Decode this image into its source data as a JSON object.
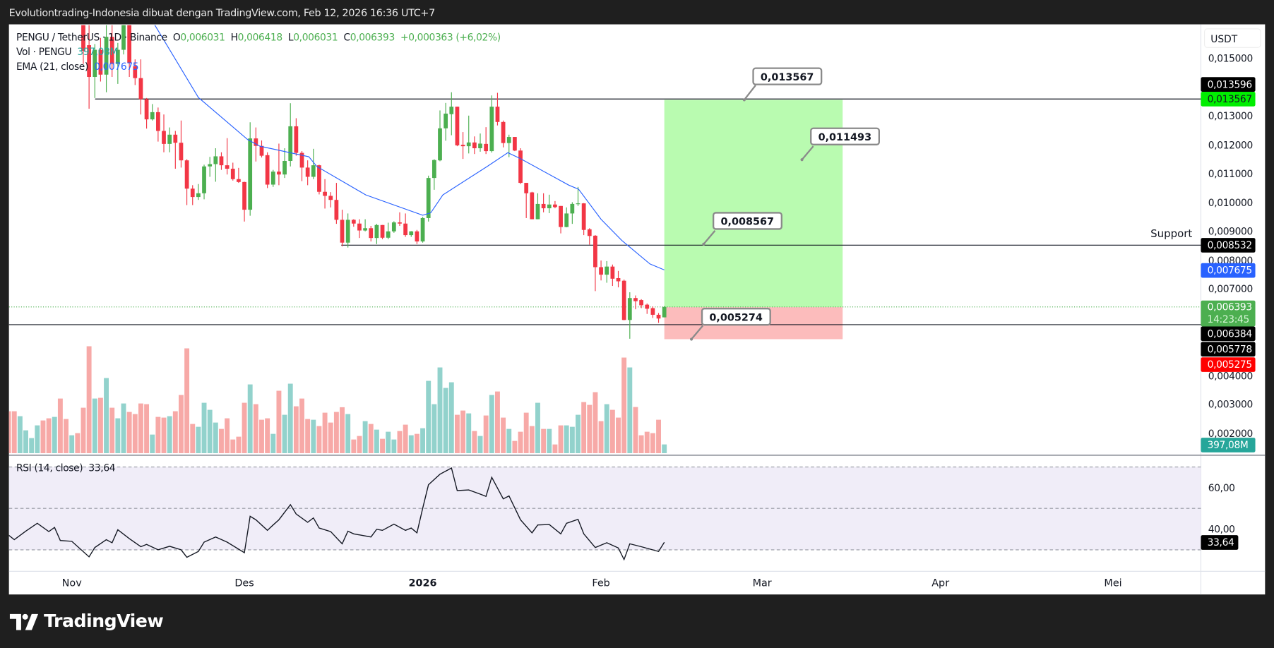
{
  "header": {
    "title": "Evolutiontrading-Indonesia dibuat dengan TradingView.com, Feb 12, 2026 16:36 UTC+7"
  },
  "legend": {
    "symbol": "PENGU / TetherUS · 1D · Binance",
    "o_label": "O",
    "o": "0,006031",
    "h_label": "H",
    "h": "0,006418",
    "l_label": "L",
    "l": "0,006031",
    "c_label": "C",
    "c": "0,006393",
    "change": "+0,000363 (+6,02%)",
    "vol_label": "Vol · PENGU",
    "vol_value": "397,08M",
    "ema_label": "EMA (21, close)",
    "ema_value": "0,007675",
    "rsi_label": "RSI (14, close)",
    "rsi_value": "33,64"
  },
  "price_axis": {
    "currency": "USDT",
    "ticks": [
      {
        "value": 0.015,
        "label": "0,015000"
      },
      {
        "value": 0.013,
        "label": "0,013000"
      },
      {
        "value": 0.012,
        "label": "0,012000"
      },
      {
        "value": 0.011,
        "label": "0,011000"
      },
      {
        "value": 0.01,
        "label": "0,010000"
      },
      {
        "value": 0.009,
        "label": "0,009000"
      },
      {
        "value": 0.008,
        "label": "0,008000"
      },
      {
        "value": 0.007,
        "label": "0,007000"
      },
      {
        "value": 0.004,
        "label": "0,004000"
      },
      {
        "value": 0.003,
        "label": "0,003000"
      },
      {
        "value": 0.002,
        "label": "0,002000"
      }
    ],
    "badges": {
      "resistance": "0,013596",
      "target": "0,013567",
      "support": "0,008532",
      "ema": "0,007675",
      "last_price": "0,006393",
      "countdown": "14:23:45",
      "entry": "0,006384",
      "low_line": "0,005778",
      "stop": "0,005275",
      "volume": "397,08M"
    }
  },
  "rsi_axis": {
    "ticks": [
      {
        "value": 60,
        "label": "60,00"
      },
      {
        "value": 40,
        "label": "40,00"
      }
    ],
    "current": "33,64"
  },
  "time_axis": [
    {
      "bar": 11,
      "label": "Nov"
    },
    {
      "bar": 41,
      "label": "Des"
    },
    {
      "bar": 72,
      "label": "2026",
      "bold": true
    },
    {
      "bar": 103,
      "label": "Feb"
    },
    {
      "bar": 131,
      "label": "Mar"
    },
    {
      "bar": 162,
      "label": "Apr"
    },
    {
      "bar": 192,
      "label": "Mei"
    }
  ],
  "drawings": {
    "support_text": "Support",
    "resistance_price": 0.013596,
    "support_price": 0.008532,
    "low_line_price": 0.005778,
    "last_price": 0.006393,
    "position": {
      "target": 0.013567,
      "entry": 0.006384,
      "stop": 0.005275,
      "start_bar": 114,
      "end_bar": 145
    },
    "callouts": [
      {
        "label": "0,013567",
        "price": 0.013567
      },
      {
        "label": "0,011493",
        "price": 0.011493
      },
      {
        "label": "0,008567",
        "price": 0.008567
      },
      {
        "label": "0,005274",
        "price": 0.005274
      }
    ]
  },
  "colors": {
    "up": "#4caf50",
    "down": "#f23645",
    "vol_up": "#92d2cc",
    "vol_down": "#f7a9a7",
    "ema": "#2962ff",
    "target_zone": "#b9fbb0",
    "stop_zone": "#fcbcbc",
    "rsi_band": "#f0edf8"
  },
  "chart_data": {
    "type": "candlestick",
    "first_candle_bar": 13,
    "candles_ohlc": [
      [
        0.0166,
        0.01701,
        0.01481,
        0.01526
      ],
      [
        0.01546,
        0.01619,
        0.01326,
        0.01436
      ],
      [
        0.01436,
        0.0155,
        0.01363,
        0.0153
      ],
      [
        0.0153,
        0.01571,
        0.0142,
        0.01444
      ],
      [
        0.01444,
        0.01619,
        0.01383,
        0.01575
      ],
      [
        0.01575,
        0.01619,
        0.01436,
        0.01481
      ],
      [
        0.01481,
        0.01554,
        0.01412,
        0.0153
      ],
      [
        0.0153,
        0.0166,
        0.01514,
        0.01619
      ],
      [
        0.01619,
        0.01644,
        0.01436,
        0.01485
      ],
      [
        0.01473,
        0.01497,
        0.01408,
        0.01432
      ],
      [
        0.01432,
        0.01497,
        0.01306,
        0.01359
      ],
      [
        0.01359,
        0.01363,
        0.01257,
        0.01289
      ],
      [
        0.01289,
        0.01342,
        0.01285,
        0.01314
      ],
      [
        0.01314,
        0.0133,
        0.01212,
        0.01249
      ],
      [
        0.01249,
        0.01306,
        0.01175,
        0.01204
      ],
      [
        0.01204,
        0.01261,
        0.01175,
        0.01236
      ],
      [
        0.01236,
        0.01249,
        0.01118,
        0.01208
      ],
      [
        0.01208,
        0.01285,
        0.01122,
        0.01147
      ],
      [
        0.01147,
        0.01151,
        0.00992,
        0.01049
      ],
      [
        0.01049,
        0.01061,
        0.00992,
        0.0102
      ],
      [
        0.0102,
        0.01065,
        0.0101,
        0.01033
      ],
      [
        0.01033,
        0.01132,
        0.01012,
        0.01126
      ],
      [
        0.01126,
        0.01159,
        0.0109,
        0.01134
      ],
      [
        0.01134,
        0.01189,
        0.01073,
        0.01161
      ],
      [
        0.01161,
        0.01175,
        0.01114,
        0.0113
      ],
      [
        0.0113,
        0.01224,
        0.01098,
        0.01118
      ],
      [
        0.01118,
        0.01139,
        0.01077,
        0.01082
      ],
      [
        0.01082,
        0.01121,
        0.01069,
        0.01072
      ],
      [
        0.01072,
        0.01073,
        0.00935,
        0.00976
      ],
      [
        0.00976,
        0.01279,
        0.00955,
        0.01223
      ],
      [
        0.01223,
        0.01261,
        0.01143,
        0.01197
      ],
      [
        0.01197,
        0.01216,
        0.01157,
        0.01163
      ],
      [
        0.01165,
        0.01175,
        0.01051,
        0.01063
      ],
      [
        0.01063,
        0.01114,
        0.01055,
        0.01108
      ],
      [
        0.01108,
        0.01205,
        0.01061,
        0.01098
      ],
      [
        0.01098,
        0.01189,
        0.01086,
        0.01145
      ],
      [
        0.01145,
        0.01345,
        0.01126,
        0.01265
      ],
      [
        0.01265,
        0.01293,
        0.01163,
        0.01173
      ],
      [
        0.01173,
        0.01179,
        0.01075,
        0.01122
      ],
      [
        0.01122,
        0.01147,
        0.01061,
        0.0109
      ],
      [
        0.0109,
        0.01187,
        0.01082,
        0.0113
      ],
      [
        0.0113,
        0.01132,
        0.01029,
        0.01038
      ],
      [
        0.01038,
        0.01082,
        0.0098,
        0.01024
      ],
      [
        0.01024,
        0.01037,
        0.00984,
        0.0101
      ],
      [
        0.0101,
        0.01069,
        0.00927,
        0.00941
      ],
      [
        0.00941,
        0.00976,
        0.00849,
        0.00862
      ],
      [
        0.00862,
        0.00963,
        0.00845,
        0.00941
      ],
      [
        0.00941,
        0.00943,
        0.00917,
        0.00928
      ],
      [
        0.00928,
        0.00943,
        0.00878,
        0.00904
      ],
      [
        0.00904,
        0.00943,
        0.00901,
        0.00912
      ],
      [
        0.00912,
        0.0092,
        0.00866,
        0.00878
      ],
      [
        0.00878,
        0.00927,
        0.00857,
        0.00923
      ],
      [
        0.00923,
        0.00923,
        0.00874,
        0.00879
      ],
      [
        0.00879,
        0.00931,
        0.00874,
        0.00901
      ],
      [
        0.00901,
        0.00936,
        0.00896,
        0.00932
      ],
      [
        0.00932,
        0.00967,
        0.0092,
        0.00928
      ],
      [
        0.00928,
        0.00963,
        0.00882,
        0.00888
      ],
      [
        0.00888,
        0.00902,
        0.00882,
        0.00901
      ],
      [
        0.00901,
        0.00906,
        0.00857,
        0.00866
      ],
      [
        0.00866,
        0.00951,
        0.00862,
        0.00947
      ],
      [
        0.00947,
        0.01094,
        0.00935,
        0.01086
      ],
      [
        0.01086,
        0.01151,
        0.01045,
        0.01148
      ],
      [
        0.01147,
        0.0132,
        0.01144,
        0.01258
      ],
      [
        0.01258,
        0.01346,
        0.01215,
        0.01309
      ],
      [
        0.01307,
        0.01383,
        0.01234,
        0.01333
      ],
      [
        0.01333,
        0.01333,
        0.01196,
        0.01199
      ],
      [
        0.01201,
        0.01245,
        0.01152,
        0.01196
      ],
      [
        0.01196,
        0.01302,
        0.01171,
        0.01209
      ],
      [
        0.01209,
        0.0123,
        0.01169,
        0.01189
      ],
      [
        0.01189,
        0.0124,
        0.01177,
        0.01205
      ],
      [
        0.01204,
        0.01262,
        0.01169,
        0.01179
      ],
      [
        0.01179,
        0.01372,
        0.01174,
        0.01333
      ],
      [
        0.01333,
        0.01381,
        0.01268,
        0.0128
      ],
      [
        0.0128,
        0.01285,
        0.01192,
        0.01207
      ],
      [
        0.01207,
        0.01236,
        0.01158,
        0.01228
      ],
      [
        0.01228,
        0.01228,
        0.01179,
        0.01181
      ],
      [
        0.01181,
        0.01189,
        0.01065,
        0.01069
      ],
      [
        0.01069,
        0.01069,
        0.00947,
        0.01033
      ],
      [
        0.01036,
        0.01038,
        0.00943,
        0.00943
      ],
      [
        0.00943,
        0.01033,
        0.00943,
        0.00996
      ],
      [
        0.00996,
        0.01033,
        0.00967,
        0.00981
      ],
      [
        0.00981,
        0.01028,
        0.00964,
        0.00994
      ],
      [
        0.00994,
        0.01006,
        0.00981,
        0.00985
      ],
      [
        0.00989,
        0.00989,
        0.00894,
        0.00916
      ],
      [
        0.00916,
        0.00984,
        0.00915,
        0.00963
      ],
      [
        0.00963,
        0.01002,
        0.00927,
        0.00996
      ],
      [
        0.00996,
        0.01055,
        0.00989,
        0.00998
      ],
      [
        0.00998,
        0.00999,
        0.00888,
        0.00906
      ],
      [
        0.00908,
        0.00912,
        0.00855,
        0.00885
      ],
      [
        0.00886,
        0.00888,
        0.00694,
        0.00777
      ],
      [
        0.00777,
        0.008,
        0.00731,
        0.00751
      ],
      [
        0.00751,
        0.00798,
        0.00723,
        0.00779
      ],
      [
        0.00779,
        0.00786,
        0.00712,
        0.00737
      ],
      [
        0.00739,
        0.00764,
        0.00707,
        0.00728
      ],
      [
        0.0073,
        0.00734,
        0.00593,
        0.00594
      ],
      [
        0.00594,
        0.0069,
        0.00529,
        0.0067
      ],
      [
        0.0067,
        0.00679,
        0.00631,
        0.00659
      ],
      [
        0.00663,
        0.00666,
        0.00635,
        0.00645
      ],
      [
        0.00647,
        0.00651,
        0.00615,
        0.00633
      ],
      [
        0.00635,
        0.00641,
        0.00601,
        0.00612
      ],
      [
        0.00612,
        0.00618,
        0.00584,
        0.00599
      ],
      [
        0.006031,
        0.006418,
        0.006031,
        0.006393
      ]
    ],
    "pre_candle_volume_directions": [
      "down",
      "down",
      "up",
      "up",
      "up",
      "up",
      "down",
      "down",
      "up",
      "down",
      "down",
      "up",
      "down"
    ],
    "volume_millions": [
      1905,
      1905,
      1680,
      1038,
      685,
      1263,
      1487,
      1584,
      1648,
      2482,
      1552,
      813,
      910,
      2065,
      4858,
      2482,
      2515,
      3413,
      2065,
      1584,
      2258,
      1873,
      1776,
      2258,
      2226,
      845,
      1648,
      1616,
      1680,
      1905,
      2643,
      4762,
      1327,
      1198,
      2290,
      1969,
      1391,
      1102,
      1584,
      621,
      749,
      2290,
      3124,
      2226,
      1519,
      1584,
      877,
      2836,
      1744,
      3157,
      2129,
      2482,
      1552,
      1519,
      1231,
      1840,
      1391,
      1873,
      2087,
      1776,
      621,
      781,
      1455,
      1327,
      1070,
      653,
      974,
      621,
      1006,
      1295,
      813,
      877,
      1134,
      3285,
      2226,
      3895,
      2964,
      3221,
      1744,
      1937,
      1808,
      1006,
      781,
      1712,
      2643,
      2803,
      1616,
      1102,
      556,
      974,
      1840,
      1231,
      2290,
      1102,
      1102,
      396,
      1263,
      1263,
      1198,
      1744,
      2322,
      2194,
      2771,
      1455,
      2226,
      1969,
      1616,
      4344,
      3895,
      2097,
      813,
      974,
      910,
      1519,
      397.08
    ],
    "ema21_points": [
      [
        25,
        0.0163
      ],
      [
        33,
        0.013649
      ],
      [
        41.6,
        0.012186
      ],
      [
        43.7,
        0.011961
      ],
      [
        52.2,
        0.011595
      ],
      [
        53.6,
        0.011258
      ],
      [
        62.1,
        0.010273
      ],
      [
        72,
        0.00957
      ],
      [
        73.4,
        0.009654
      ],
      [
        75.5,
        0.010273
      ],
      [
        83.2,
        0.011258
      ],
      [
        86.8,
        0.011736
      ],
      [
        88.9,
        0.011539
      ],
      [
        97.4,
        0.010611
      ],
      [
        99.1,
        0.01047
      ],
      [
        103,
        0.009429
      ],
      [
        106.6,
        0.008697
      ],
      [
        111.5,
        0.007881
      ],
      [
        114,
        0.007675
      ]
    ],
    "rsi_points": [
      [
        0,
        37.1
      ],
      [
        1,
        34.9
      ],
      [
        3,
        39.0
      ],
      [
        5,
        42.8
      ],
      [
        7,
        38.8
      ],
      [
        8,
        40.8
      ],
      [
        9,
        34.5
      ],
      [
        11,
        34.1
      ],
      [
        14,
        26.6
      ],
      [
        15,
        31.1
      ],
      [
        17,
        34.9
      ],
      [
        18,
        33.4
      ],
      [
        19,
        39.7
      ],
      [
        21,
        35.4
      ],
      [
        23,
        31.5
      ],
      [
        24,
        32.6
      ],
      [
        26,
        30.0
      ],
      [
        28,
        31.7
      ],
      [
        30,
        30.0
      ],
      [
        31,
        26.4
      ],
      [
        33,
        29.2
      ],
      [
        34,
        33.7
      ],
      [
        36,
        36.2
      ],
      [
        38,
        33.7
      ],
      [
        41,
        28.6
      ],
      [
        42,
        46.2
      ],
      [
        43,
        44.5
      ],
      [
        45,
        39.4
      ],
      [
        46,
        42.0
      ],
      [
        47,
        44.5
      ],
      [
        49,
        51.8
      ],
      [
        50,
        47.3
      ],
      [
        52,
        43.3
      ],
      [
        53,
        45.4
      ],
      [
        54,
        40.5
      ],
      [
        56,
        38.8
      ],
      [
        58,
        32.9
      ],
      [
        59,
        39.0
      ],
      [
        60,
        37.7
      ],
      [
        63,
        36.2
      ],
      [
        64,
        39.9
      ],
      [
        65,
        39.4
      ],
      [
        67,
        42.4
      ],
      [
        69,
        39.4
      ],
      [
        70,
        40.5
      ],
      [
        71,
        38.2
      ],
      [
        72,
        50.1
      ],
      [
        73,
        61.4
      ],
      [
        75,
        66.5
      ],
      [
        77,
        69.5
      ],
      [
        78,
        58.6
      ],
      [
        80,
        58.9
      ],
      [
        82,
        56.9
      ],
      [
        83,
        55.8
      ],
      [
        84,
        65.0
      ],
      [
        86,
        54.6
      ],
      [
        87,
        56.0
      ],
      [
        89,
        44.5
      ],
      [
        91,
        38.2
      ],
      [
        92,
        42.0
      ],
      [
        94,
        42.2
      ],
      [
        96,
        37.7
      ],
      [
        97,
        42.8
      ],
      [
        99,
        44.7
      ],
      [
        100,
        37.7
      ],
      [
        102,
        31.1
      ],
      [
        104,
        33.4
      ],
      [
        106,
        30.9
      ],
      [
        107,
        25.3
      ],
      [
        108,
        32.9
      ],
      [
        110,
        31.5
      ],
      [
        113,
        29.2
      ],
      [
        114,
        33.64
      ]
    ],
    "rsi_levels": [
      70,
      50,
      30
    ],
    "ylim": [
      0.0015,
      0.0162
    ]
  },
  "branding": {
    "logo_text": "TradingView"
  }
}
